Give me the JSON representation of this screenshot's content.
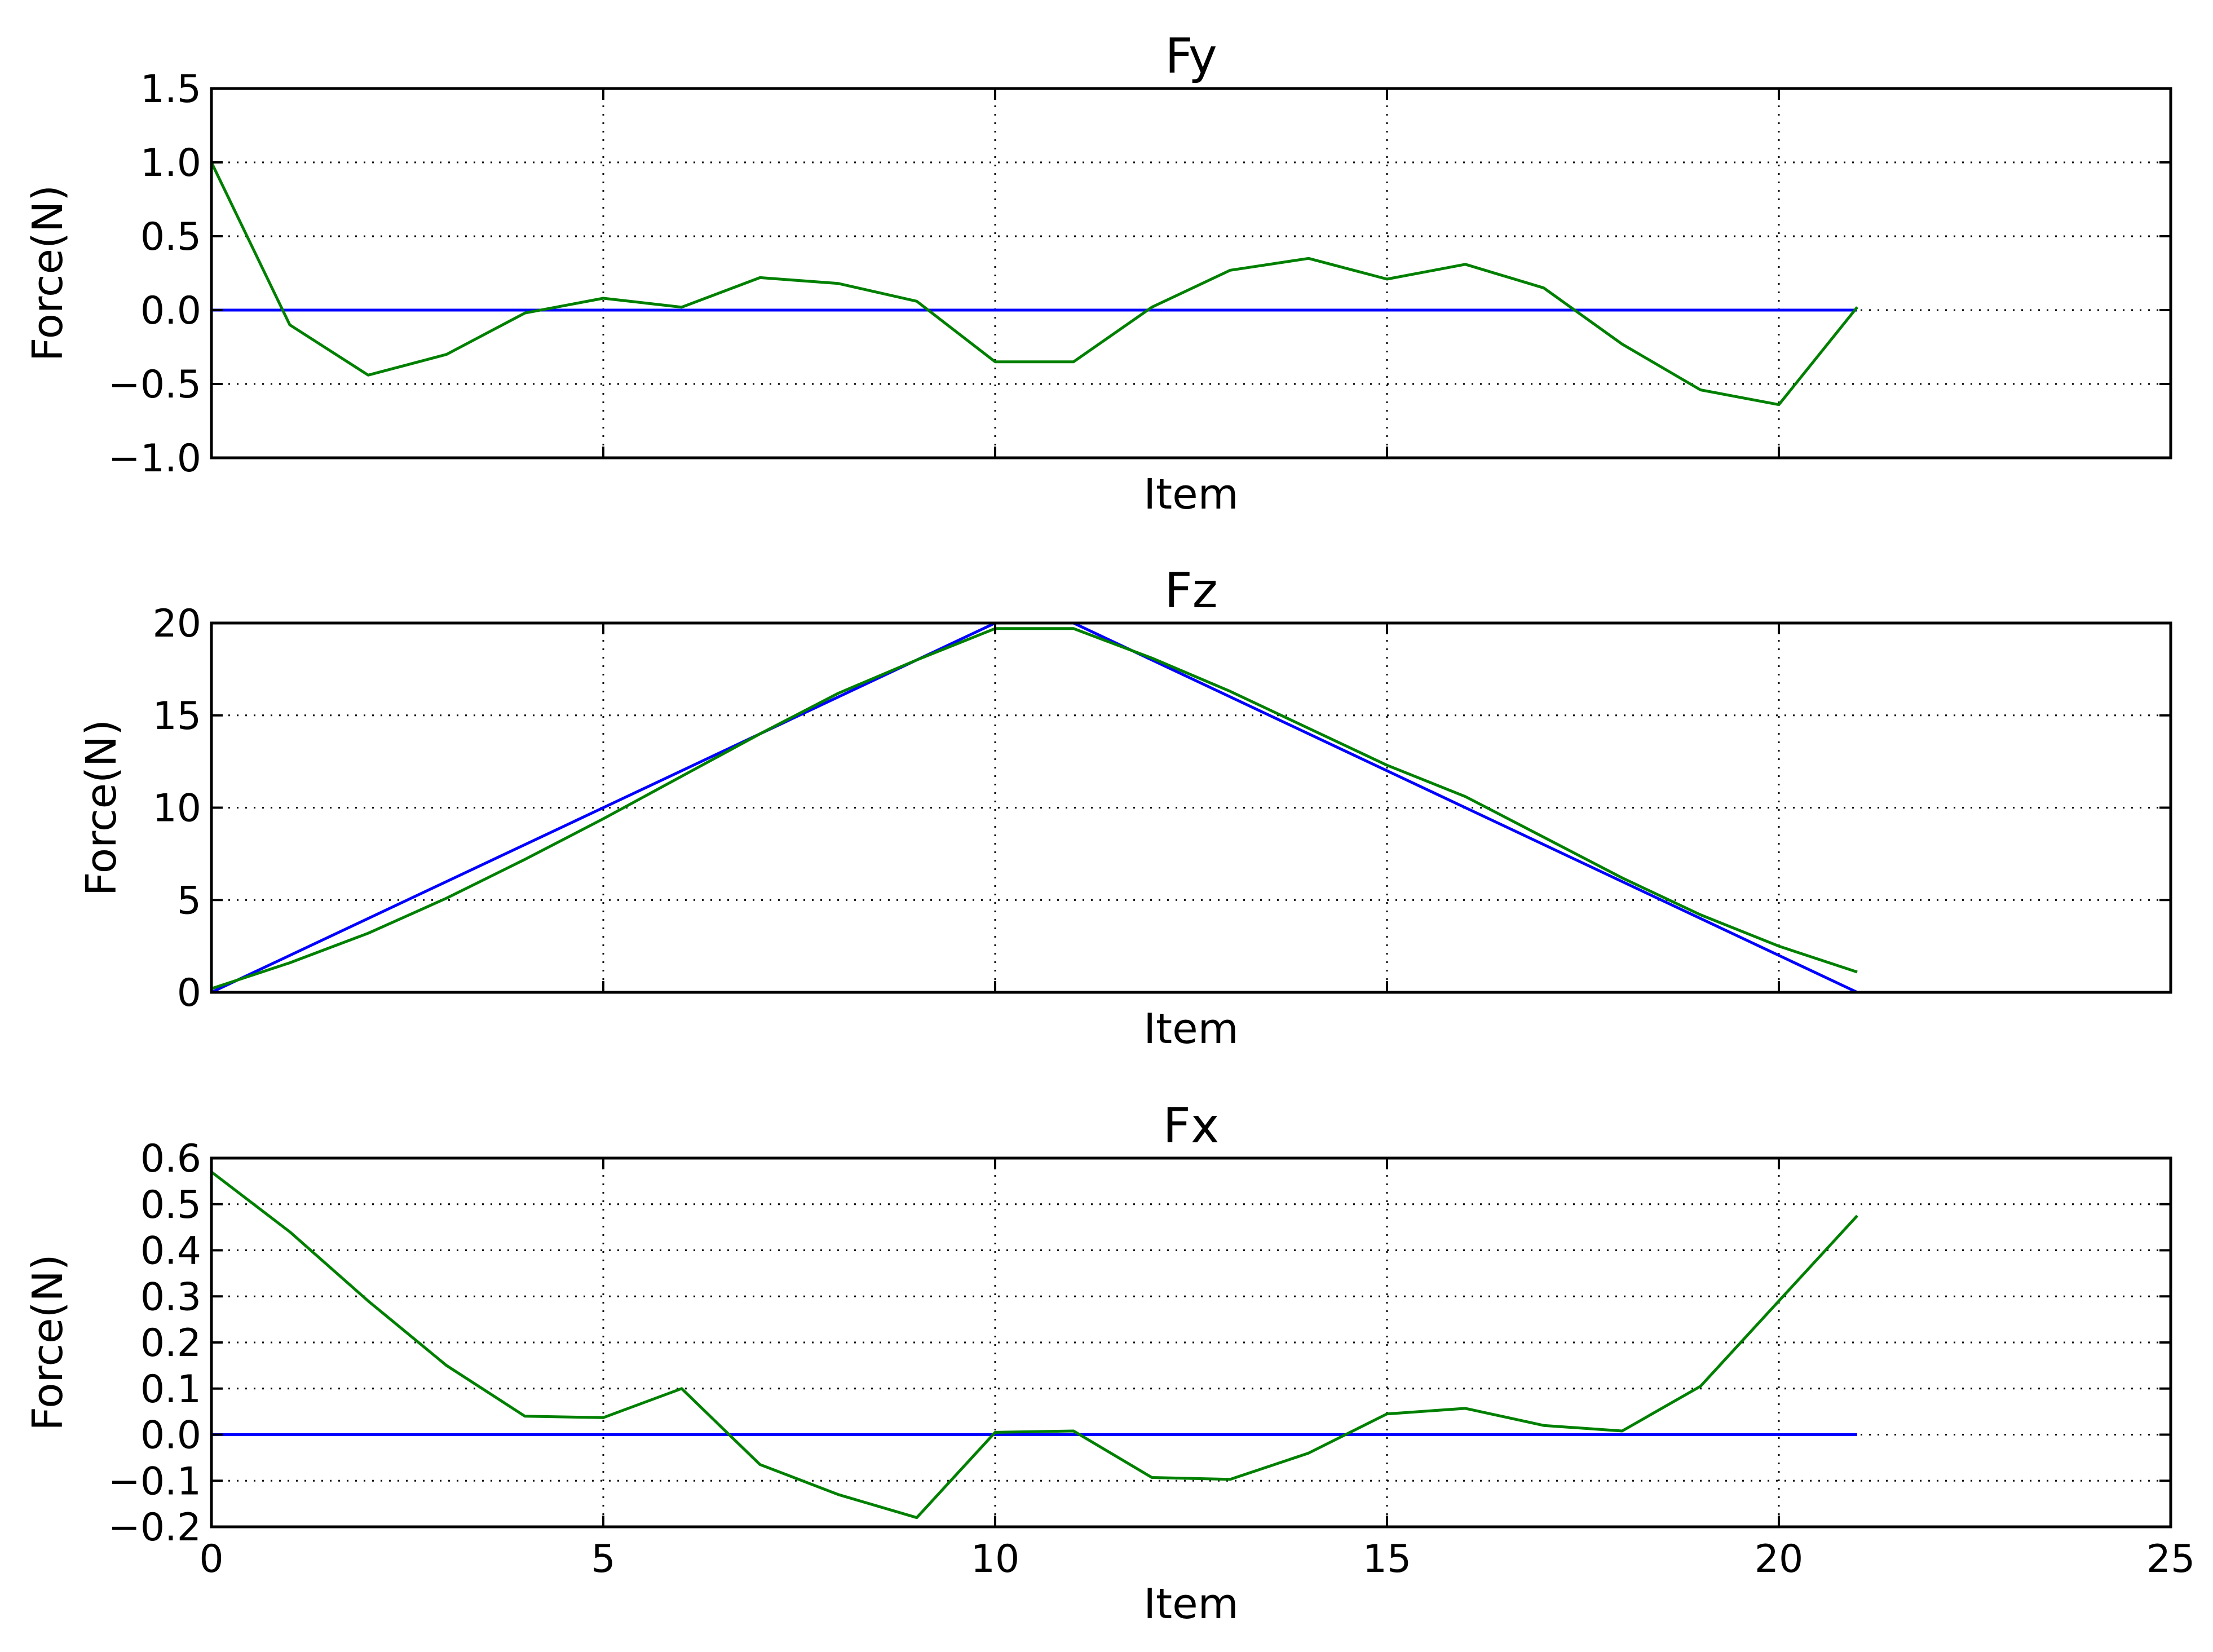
{
  "colors": {
    "target": "#0000ff",
    "measured": "#008000",
    "grid": "#000000"
  },
  "chart_data": [
    {
      "type": "line",
      "title": "Fy",
      "xlabel": "Item",
      "ylabel": "Force(N)",
      "xlim": [
        0,
        25
      ],
      "ylim": [
        -1.0,
        1.5
      ],
      "grid": true,
      "xticks": [
        0,
        5,
        10,
        15,
        20,
        25
      ],
      "yticks": [
        "1.5",
        "1.0",
        "0.5",
        "0.0",
        "−0.5",
        "−1.0"
      ],
      "x_tick_labels_visible": false,
      "x": [
        0,
        1,
        2,
        3,
        4,
        5,
        6,
        7,
        8,
        9,
        10,
        11,
        12,
        13,
        14,
        15,
        16,
        17,
        18,
        19,
        20,
        21
      ],
      "series": [
        {
          "values": [
            0,
            0,
            0,
            0,
            0,
            0,
            0,
            0,
            0,
            0,
            0,
            0,
            0,
            0,
            0,
            0,
            0,
            0,
            0,
            0,
            0,
            0
          ]
        },
        {
          "values": [
            1.0,
            -0.1,
            -0.44,
            -0.3,
            -0.02,
            0.08,
            0.02,
            0.22,
            0.18,
            0.06,
            -0.35,
            -0.35,
            0.02,
            0.27,
            0.35,
            0.21,
            0.31,
            0.15,
            -0.23,
            -0.54,
            -0.64,
            0.02
          ]
        }
      ]
    },
    {
      "type": "line",
      "title": "Fz",
      "xlabel": "Item",
      "ylabel": "Force(N)",
      "xlim": [
        0,
        25
      ],
      "ylim": [
        0,
        20
      ],
      "grid": true,
      "xticks": [
        0,
        5,
        10,
        15,
        20,
        25
      ],
      "yticks": [
        "20",
        "15",
        "10",
        "5",
        "0"
      ],
      "x_tick_labels_visible": false,
      "x": [
        0,
        1,
        2,
        3,
        4,
        5,
        6,
        7,
        8,
        9,
        10,
        11,
        12,
        13,
        14,
        15,
        16,
        17,
        18,
        19,
        20,
        21
      ],
      "series": [
        {
          "values": [
            0,
            2,
            4,
            6,
            8,
            10,
            12,
            14,
            16,
            18,
            20,
            20,
            18,
            16,
            14,
            12,
            10,
            8,
            6,
            4,
            2,
            0
          ]
        },
        {
          "values": [
            0.2,
            1.6,
            3.2,
            5.1,
            7.2,
            9.4,
            11.7,
            14.0,
            16.2,
            18.0,
            19.7,
            19.7,
            18.1,
            16.3,
            14.3,
            12.3,
            10.6,
            8.4,
            6.2,
            4.2,
            2.5,
            1.1
          ]
        }
      ]
    },
    {
      "type": "line",
      "title": "Fx",
      "xlabel": "Item",
      "ylabel": "Force(N)",
      "xlim": [
        0,
        25
      ],
      "ylim": [
        -0.2,
        0.6
      ],
      "grid": true,
      "xticks": [
        0,
        5,
        10,
        15,
        20,
        25
      ],
      "yticks": [
        "0.6",
        "0.5",
        "0.4",
        "0.3",
        "0.2",
        "0.1",
        "0.0",
        "−0.1",
        "−0.2"
      ],
      "x_tick_labels_visible": true,
      "x": [
        0,
        1,
        2,
        3,
        4,
        5,
        6,
        7,
        8,
        9,
        10,
        11,
        12,
        13,
        14,
        15,
        16,
        17,
        18,
        19,
        20,
        21
      ],
      "series": [
        {
          "values": [
            0,
            0,
            0,
            0,
            0,
            0,
            0,
            0,
            0,
            0,
            0,
            0,
            0,
            0,
            0,
            0,
            0,
            0,
            0,
            0,
            0,
            0
          ]
        },
        {
          "values": [
            0.57,
            0.44,
            0.29,
            0.15,
            0.04,
            0.037,
            0.1,
            -0.065,
            -0.13,
            -0.18,
            0.005,
            0.008,
            -0.093,
            -0.097,
            -0.04,
            0.045,
            0.057,
            0.02,
            0.008,
            0.105,
            0.29,
            0.475
          ]
        }
      ]
    }
  ]
}
